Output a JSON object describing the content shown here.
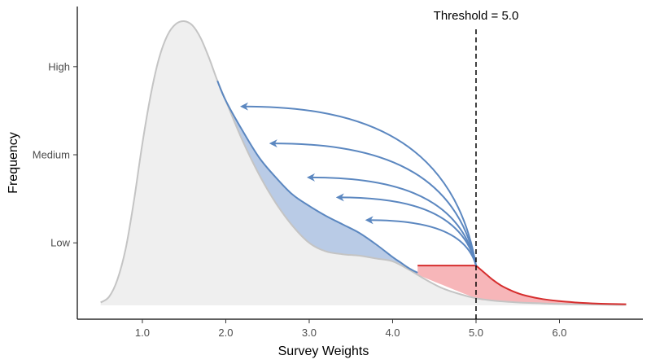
{
  "chart_data": {
    "type": "area",
    "title": "",
    "xlabel": "Survey Weights",
    "ylabel": "Frequency",
    "xlim": [
      0.22,
      7.0
    ],
    "ylim": [
      0.0,
      1.0
    ],
    "x_ticks": [
      {
        "value": 1.0,
        "label": "1.0"
      },
      {
        "value": 2.0,
        "label": "2.0"
      },
      {
        "value": 3.0,
        "label": "3.0"
      },
      {
        "value": 4.0,
        "label": "4.0"
      },
      {
        "value": 5.0,
        "label": "5.0"
      },
      {
        "value": 6.0,
        "label": "6.0"
      }
    ],
    "y_ticks": [
      {
        "value": 0.22,
        "label": "Low"
      },
      {
        "value": 0.53,
        "label": "Medium"
      },
      {
        "value": 0.84,
        "label": "High"
      }
    ],
    "grid": false,
    "colors": {
      "original_fill": "#efefef",
      "original_line": "#c4c4c4",
      "trimmed_fill": "#b9cbe6",
      "trimmed_line": "#5b87c0",
      "excess_fill": "#f7b6b9",
      "excess_line": "#d62e2e",
      "arrow": "#5b87c0"
    },
    "series": [
      {
        "name": "",
        "role": "original",
        "x": [
          0.5,
          0.6,
          0.7,
          0.8,
          0.9,
          1.0,
          1.1,
          1.2,
          1.3,
          1.4,
          1.5,
          1.6,
          1.7,
          1.8,
          1.9,
          2.0,
          2.2,
          2.4,
          2.6,
          2.8,
          3.0,
          3.2,
          3.4,
          3.6,
          3.8,
          4.0,
          4.2,
          4.4,
          4.6,
          4.8,
          5.0,
          5.2,
          5.4,
          5.6,
          5.8,
          6.0,
          6.2,
          6.4,
          6.6,
          6.8
        ],
        "y": [
          0.01,
          0.03,
          0.09,
          0.2,
          0.37,
          0.57,
          0.74,
          0.87,
          0.95,
          0.99,
          1.0,
          0.985,
          0.94,
          0.87,
          0.79,
          0.72,
          0.58,
          0.46,
          0.36,
          0.28,
          0.22,
          0.19,
          0.18,
          0.175,
          0.165,
          0.155,
          0.125,
          0.09,
          0.06,
          0.04,
          0.025,
          0.017,
          0.012,
          0.009,
          0.007,
          0.005,
          0.004,
          0.003,
          0.002,
          0.002
        ]
      },
      {
        "name": "",
        "role": "trimmed",
        "x": [
          1.9,
          2.0,
          2.2,
          2.4,
          2.6,
          2.8,
          3.0,
          3.2,
          3.4,
          3.6,
          3.8,
          4.0,
          4.1,
          4.2,
          4.3
        ],
        "y": [
          0.79,
          0.72,
          0.615,
          0.52,
          0.45,
          0.39,
          0.35,
          0.315,
          0.285,
          0.255,
          0.215,
          0.17,
          0.15,
          0.13,
          0.115
        ]
      },
      {
        "name": "",
        "role": "excess",
        "x": [
          4.3,
          5.0,
          5.1,
          5.2,
          5.3,
          5.4,
          5.5,
          5.6,
          5.8,
          6.0,
          6.2,
          6.4,
          6.6,
          6.8
        ],
        "y": [
          0.14,
          0.14,
          0.115,
          0.09,
          0.07,
          0.055,
          0.043,
          0.034,
          0.022,
          0.015,
          0.01,
          0.007,
          0.005,
          0.004
        ]
      }
    ],
    "threshold": {
      "value": 5.0,
      "label": "Threshold = 5.0"
    },
    "redistribution_arrows": [
      {
        "from": [
          5.0,
          0.14
        ],
        "to": [
          2.2,
          0.7
        ]
      },
      {
        "from": [
          5.0,
          0.14
        ],
        "to": [
          2.55,
          0.57
        ]
      },
      {
        "from": [
          5.0,
          0.14
        ],
        "to": [
          3.0,
          0.45
        ]
      },
      {
        "from": [
          5.0,
          0.14
        ],
        "to": [
          3.35,
          0.38
        ]
      },
      {
        "from": [
          5.0,
          0.14
        ],
        "to": [
          3.7,
          0.3
        ]
      }
    ]
  }
}
